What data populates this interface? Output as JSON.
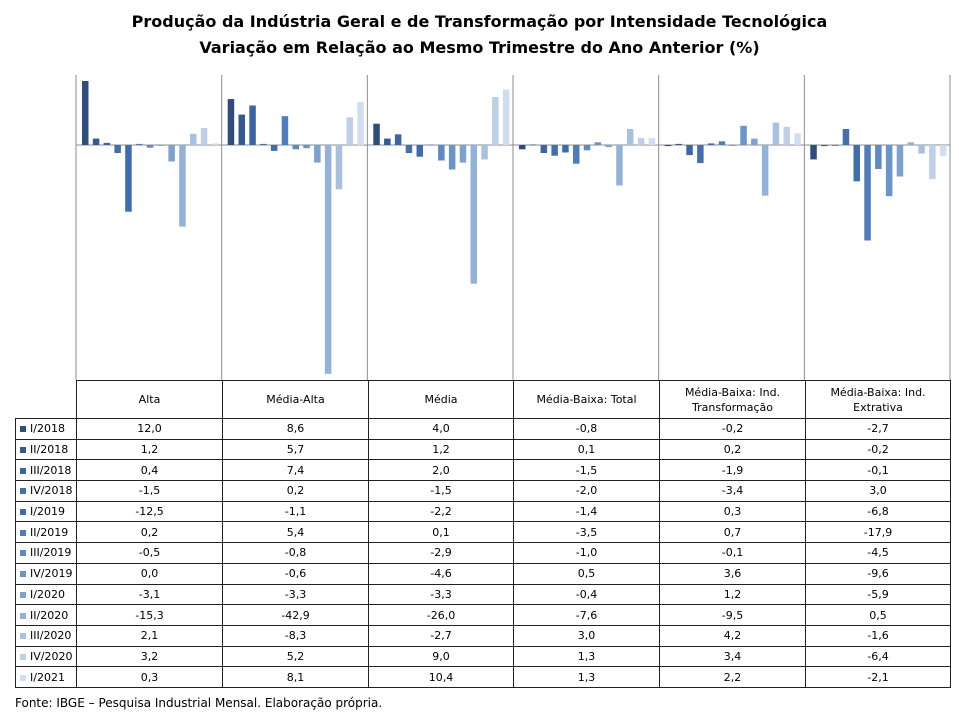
{
  "chart_data": {
    "type": "bar",
    "title": "Produção da Indústria Geral e de Transformação por Intensidade Tecnológica",
    "subtitle": "Variação em Relação ao Mesmo Trimestre do Ano Anterior (%)",
    "categories": [
      "Alta",
      "Média-Alta",
      "Média",
      "Média-Baixa: Total",
      "Média-Baixa: Ind. Transformação",
      "Média-Baixa: Ind. Extrativa"
    ],
    "ylim": [
      -43,
      12.5
    ],
    "grid": false,
    "legend": "table-left",
    "series": [
      {
        "name": "I/2018",
        "color": "#2e4d7b",
        "values": [
          12.0,
          8.6,
          4.0,
          -0.8,
          -0.2,
          -2.7
        ]
      },
      {
        "name": "II/2018",
        "color": "#345a8f",
        "values": [
          1.2,
          5.7,
          1.2,
          0.1,
          0.2,
          -0.2
        ]
      },
      {
        "name": "III/2018",
        "color": "#3b66a1",
        "values": [
          0.4,
          7.4,
          2.0,
          -1.5,
          -1.9,
          -0.1
        ]
      },
      {
        "name": "IV/2018",
        "color": "#4270ad",
        "values": [
          -1.5,
          0.2,
          -1.5,
          -2.0,
          -3.4,
          3.0
        ]
      },
      {
        "name": "I/2019",
        "color": "#3d6db0",
        "values": [
          -12.5,
          -1.1,
          -2.2,
          -1.4,
          0.3,
          -6.8
        ]
      },
      {
        "name": "II/2019",
        "color": "#4f7cbc",
        "values": [
          0.2,
          5.4,
          0.1,
          -3.5,
          0.7,
          -17.9
        ]
      },
      {
        "name": "III/2019",
        "color": "#5e89c4",
        "values": [
          -0.5,
          -0.8,
          -2.9,
          -1.0,
          -0.1,
          -4.5
        ]
      },
      {
        "name": "IV/2019",
        "color": "#6d94c8",
        "values": [
          0.0,
          -0.6,
          -4.6,
          0.5,
          3.6,
          -9.6
        ]
      },
      {
        "name": "I/2020",
        "color": "#7ea1cf",
        "values": [
          -3.1,
          -3.3,
          -3.3,
          -0.4,
          1.2,
          -5.9
        ]
      },
      {
        "name": "II/2020",
        "color": "#93b2d9",
        "values": [
          -15.3,
          -42.9,
          -26.0,
          -7.6,
          -9.5,
          0.5
        ]
      },
      {
        "name": "III/2020",
        "color": "#a9c1e1",
        "values": [
          2.1,
          -8.3,
          -2.7,
          3.0,
          4.2,
          -1.6
        ]
      },
      {
        "name": "IV/2020",
        "color": "#bed0e9",
        "values": [
          3.2,
          5.2,
          9.0,
          1.3,
          3.4,
          -6.4
        ]
      },
      {
        "name": "I/2021",
        "color": "#d2def0",
        "values": [
          0.3,
          8.1,
          10.4,
          1.3,
          2.2,
          -2.1
        ]
      }
    ]
  },
  "table": {
    "headers": [
      "Alta",
      "Média-Alta",
      "Média",
      "Média-Baixa: Total",
      "Média-Baixa: Ind. Transformação",
      "Média-Baixa: Ind. Extrativa"
    ],
    "rows": [
      {
        "label": "I/2018",
        "cells": [
          "12,0",
          "8,6",
          "4,0",
          "-0,8",
          "-0,2",
          "-2,7"
        ]
      },
      {
        "label": "II/2018",
        "cells": [
          "1,2",
          "5,7",
          "1,2",
          "0,1",
          "0,2",
          "-0,2"
        ]
      },
      {
        "label": "III/2018",
        "cells": [
          "0,4",
          "7,4",
          "2,0",
          "-1,5",
          "-1,9",
          "-0,1"
        ]
      },
      {
        "label": "IV/2018",
        "cells": [
          "-1,5",
          "0,2",
          "-1,5",
          "-2,0",
          "-3,4",
          "3,0"
        ]
      },
      {
        "label": "I/2019",
        "cells": [
          "-12,5",
          "-1,1",
          "-2,2",
          "-1,4",
          "0,3",
          "-6,8"
        ]
      },
      {
        "label": "II/2019",
        "cells": [
          "0,2",
          "5,4",
          "0,1",
          "-3,5",
          "0,7",
          "-17,9"
        ]
      },
      {
        "label": "III/2019",
        "cells": [
          "-0,5",
          "-0,8",
          "-2,9",
          "-1,0",
          "-0,1",
          "-4,5"
        ]
      },
      {
        "label": "IV/2019",
        "cells": [
          "0,0",
          "-0,6",
          "-4,6",
          "0,5",
          "3,6",
          "-9,6"
        ]
      },
      {
        "label": "I/2020",
        "cells": [
          "-3,1",
          "-3,3",
          "-3,3",
          "-0,4",
          "1,2",
          "-5,9"
        ]
      },
      {
        "label": "II/2020",
        "cells": [
          "-15,3",
          "-42,9",
          "-26,0",
          "-7,6",
          "-9,5",
          "0,5"
        ]
      },
      {
        "label": "III/2020",
        "cells": [
          "2,1",
          "-8,3",
          "-2,7",
          "3,0",
          "4,2",
          "-1,6"
        ]
      },
      {
        "label": "IV/2020",
        "cells": [
          "3,2",
          "5,2",
          "9,0",
          "1,3",
          "3,4",
          "-6,4"
        ]
      },
      {
        "label": "I/2021",
        "cells": [
          "0,3",
          "8,1",
          "10,4",
          "1,3",
          "2,2",
          "-2,1"
        ]
      }
    ]
  },
  "source": "Fonte: IBGE – Pesquisa Industrial Mensal. Elaboração própria."
}
